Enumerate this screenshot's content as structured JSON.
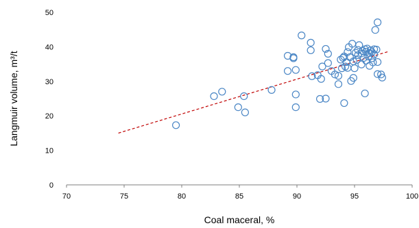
{
  "chart_data": {
    "type": "scatter",
    "xlabel": "Coal maceral, %",
    "ylabel": "Langmuir volume, m³/t",
    "xlim": [
      70,
      100
    ],
    "ylim": [
      0,
      50
    ],
    "xticks": [
      70,
      75,
      80,
      85,
      90,
      95,
      100
    ],
    "yticks": [
      0,
      10,
      20,
      30,
      40,
      50
    ],
    "grid": false,
    "marker_color": "#4a86c5",
    "trendline_color": "#c00000",
    "series": [
      {
        "type": "scatter",
        "points": [
          [
            79.5,
            17.3
          ],
          [
            82.8,
            25.7
          ],
          [
            83.5,
            27.0
          ],
          [
            84.9,
            22.5
          ],
          [
            85.4,
            25.7
          ],
          [
            85.5,
            21.0
          ],
          [
            87.8,
            27.5
          ],
          [
            89.2,
            37.4
          ],
          [
            89.2,
            33.0
          ],
          [
            89.7,
            36.7
          ],
          [
            89.7,
            37.0
          ],
          [
            89.9,
            33.3
          ],
          [
            89.9,
            26.2
          ],
          [
            89.9,
            22.5
          ],
          [
            90.4,
            43.3
          ],
          [
            91.2,
            41.2
          ],
          [
            91.2,
            39.0
          ],
          [
            91.3,
            31.5
          ],
          [
            91.8,
            31.8
          ],
          [
            92.0,
            24.9
          ],
          [
            92.1,
            30.7
          ],
          [
            92.2,
            34.3
          ],
          [
            92.5,
            39.4
          ],
          [
            92.5,
            25.0
          ],
          [
            92.7,
            35.3
          ],
          [
            92.7,
            38.0
          ],
          [
            93.0,
            33.0
          ],
          [
            93.3,
            32.0
          ],
          [
            93.6,
            29.2
          ],
          [
            93.6,
            31.6
          ],
          [
            93.8,
            36.3
          ],
          [
            93.9,
            33.8
          ],
          [
            94.0,
            36.8
          ],
          [
            94.1,
            23.7
          ],
          [
            94.1,
            37.2
          ],
          [
            94.2,
            34.3
          ],
          [
            94.3,
            35.6
          ],
          [
            94.4,
            38.5
          ],
          [
            94.4,
            33.9
          ],
          [
            94.5,
            39.9
          ],
          [
            94.6,
            37.0
          ],
          [
            94.7,
            30.1
          ],
          [
            94.8,
            40.9
          ],
          [
            94.9,
            31.0
          ],
          [
            94.9,
            35.8
          ],
          [
            95.0,
            33.8
          ],
          [
            95.1,
            38.3
          ],
          [
            95.2,
            36.2
          ],
          [
            95.3,
            39.1
          ],
          [
            95.3,
            37.6
          ],
          [
            95.4,
            40.5
          ],
          [
            95.6,
            34.9
          ],
          [
            95.6,
            38.1
          ],
          [
            95.7,
            38.8
          ],
          [
            95.8,
            36.8
          ],
          [
            95.9,
            26.5
          ],
          [
            95.9,
            39.3
          ],
          [
            96.0,
            38.6
          ],
          [
            96.0,
            36.0
          ],
          [
            96.1,
            39.5
          ],
          [
            96.2,
            37.2
          ],
          [
            96.3,
            34.5
          ],
          [
            96.3,
            38.2
          ],
          [
            96.4,
            39.0
          ],
          [
            96.5,
            36.7
          ],
          [
            96.5,
            38.5
          ],
          [
            96.6,
            35.5
          ],
          [
            96.7,
            37.8
          ],
          [
            96.7,
            39.3
          ],
          [
            96.8,
            44.9
          ],
          [
            96.9,
            39.2
          ],
          [
            97.0,
            47.1
          ],
          [
            97.0,
            35.6
          ],
          [
            97.0,
            32.1
          ],
          [
            97.3,
            32.0
          ],
          [
            97.4,
            31.1
          ]
        ]
      },
      {
        "type": "line",
        "style": "dashed",
        "points": [
          [
            74.5,
            15.0
          ],
          [
            98.0,
            38.7
          ]
        ]
      }
    ]
  }
}
